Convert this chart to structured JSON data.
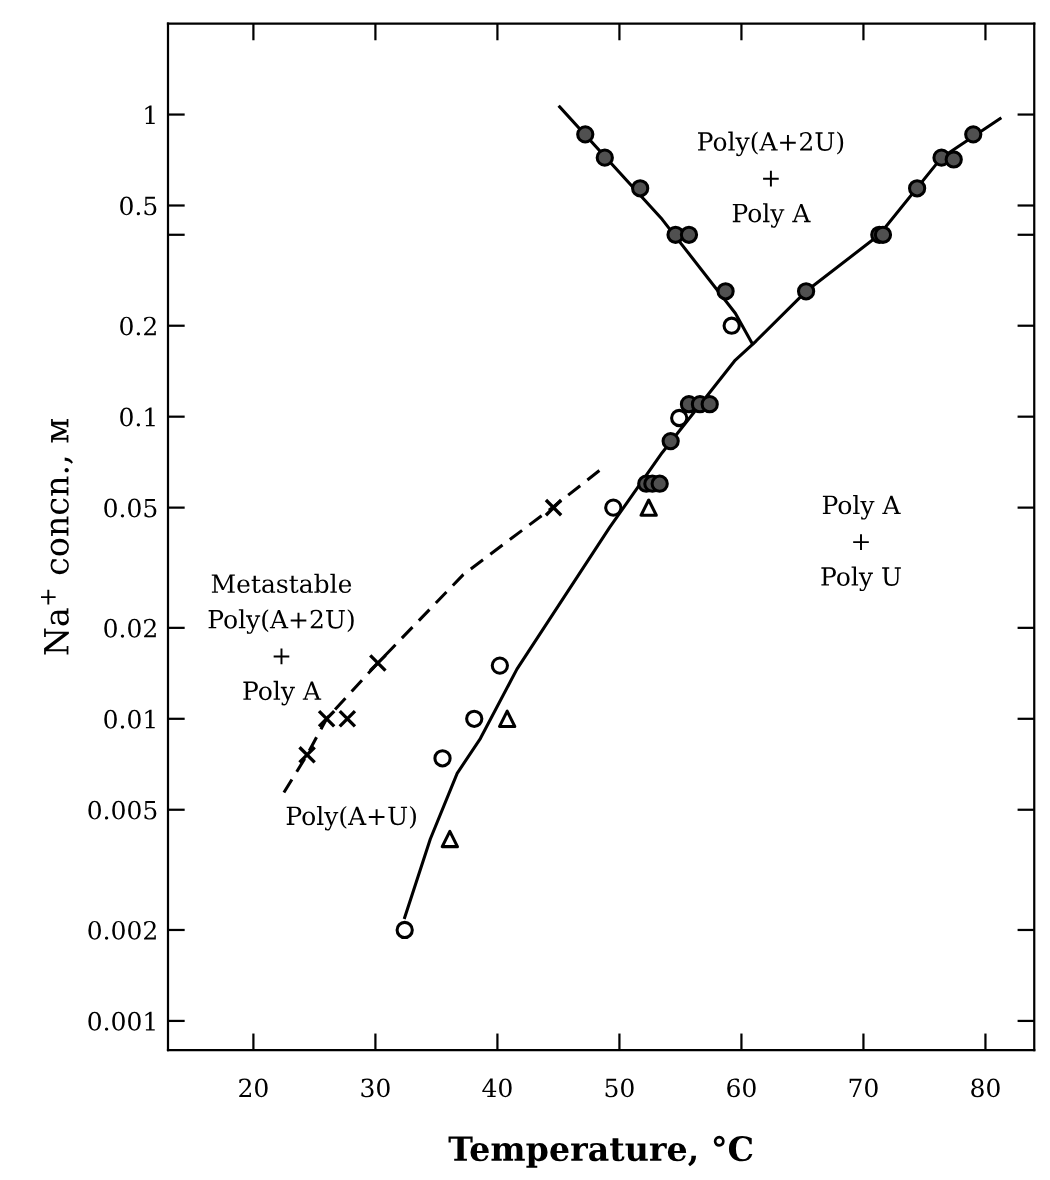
{
  "chart_data": {
    "type": "scatter",
    "xlabel": "Temperature, °C",
    "ylabel": "Na$^{+}$ concn., м",
    "log": "y",
    "xlim": [
      13,
      84
    ],
    "ylim": [
      0.0008,
      2
    ],
    "xticks": [
      20,
      30,
      40,
      50,
      60,
      70,
      80
    ],
    "yticks": [
      1,
      {
        "value": 0.5,
        "label": "0.5"
      },
      {
        "value": 0.4,
        "label": null
      },
      {
        "value": 0.2,
        "label": "0.2"
      },
      {
        "value": 0.1,
        "label": "0.1"
      },
      {
        "value": 0.05,
        "label": "0.05"
      },
      {
        "value": 0.02,
        "label": "0.02"
      },
      {
        "value": 0.01,
        "label": "0.01"
      },
      {
        "value": 0.005,
        "label": "0.005"
      },
      {
        "value": 0.002,
        "label": "0.002"
      },
      {
        "value": 0.001,
        "label": "0.001"
      }
    ],
    "grid": false,
    "legend": false,
    "series": [
      {
        "type": "line",
        "line_style": "solid",
        "marker": "none",
        "color": "#000000",
        "x": [
          45.1,
          53.5,
          59.5,
          60.9
        ],
        "values": [
          1.06,
          0.45,
          0.22,
          0.174
        ]
      },
      {
        "type": "line",
        "line_style": "solid",
        "marker": "none",
        "color": "#000000",
        "x": [
          32.4,
          34.5,
          36.7,
          38.6,
          41.6,
          49.2,
          53.5,
          59.5,
          61.2,
          65.3,
          71.3,
          76.4,
          81.2
        ],
        "values": [
          0.0022,
          0.004,
          0.0066,
          0.0086,
          0.0146,
          0.043,
          0.076,
          0.154,
          0.178,
          0.26,
          0.4,
          0.72,
          0.97
        ]
      },
      {
        "type": "line",
        "line_style": "dashed",
        "marker": "none",
        "color": "#000000",
        "x": [
          22.5,
          24.4,
          26.0,
          30.2,
          37.2,
          44.5,
          48.5
        ],
        "values": [
          0.0057,
          0.0076,
          0.01,
          0.0153,
          0.03,
          0.05,
          0.067
        ]
      },
      {
        "marker": "circle",
        "color": "#505050",
        "x": [
          47.2,
          48.8,
          51.7,
          54.6,
          55.7,
          58.7,
          65.3,
          71.3,
          71.6,
          74.4,
          76.4,
          77.4,
          79.0,
          55.7,
          56.6,
          57.4,
          54.2,
          52.2,
          52.7,
          53.3
        ],
        "values": [
          0.86,
          0.72,
          0.57,
          0.4,
          0.4,
          0.26,
          0.26,
          0.4,
          0.4,
          0.57,
          0.72,
          0.71,
          0.86,
          0.11,
          0.11,
          0.11,
          0.083,
          0.06,
          0.06,
          0.06
        ]
      },
      {
        "marker": "circle",
        "color": "#ffffff",
        "x": [
          59.2,
          54.9,
          49.5,
          38.1,
          35.5,
          32.4,
          40.2
        ],
        "values": [
          0.2,
          0.099,
          0.05,
          0.01,
          0.0074,
          0.002,
          0.015
        ]
      },
      {
        "marker": "triangle",
        "color": "#ffffff",
        "x": [
          52.4,
          40.8,
          36.1
        ],
        "values": [
          0.05,
          0.01,
          0.004
        ]
      },
      {
        "marker": "cross",
        "color": "#000000",
        "x": [
          44.6,
          30.2,
          26.0,
          27.7,
          24.4
        ],
        "values": [
          0.05,
          0.0153,
          0.01,
          0.01,
          0.0076
        ]
      }
    ],
    "annotations": [
      "Poly(A+2U)\n+\nPoly A",
      "Poly A\n+\nPoly U",
      "Metastable\nPoly(A+2U)\n+\nPoly A",
      "Poly(A+U)"
    ]
  }
}
